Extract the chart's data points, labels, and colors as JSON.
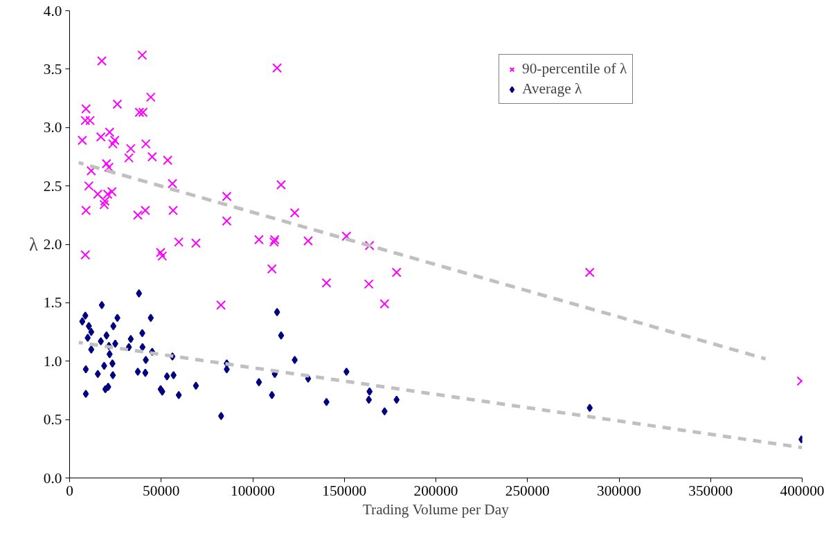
{
  "chart_data": {
    "type": "scatter",
    "xlabel": "Trading Volume per Day",
    "ylabel": "λ",
    "xlim": [
      0,
      400000
    ],
    "ylim": [
      0,
      4.0
    ],
    "xticks": [
      0,
      50000,
      100000,
      150000,
      200000,
      250000,
      300000,
      350000,
      400000
    ],
    "yticks": [
      {
        "value": 0,
        "label": "0.0"
      },
      {
        "value": 0.5,
        "label": "0.5"
      },
      {
        "value": 1,
        "label": "1.0"
      },
      {
        "value": 1.5,
        "label": "1.5"
      },
      {
        "value": 2,
        "label": "2.0"
      },
      {
        "value": 2.5,
        "label": "2.5"
      },
      {
        "value": 3,
        "label": "3.0"
      },
      {
        "value": 3.5,
        "label": "3.5"
      },
      {
        "value": 4,
        "label": "4.0"
      }
    ],
    "grid": false,
    "legend": "top right",
    "series": [
      {
        "name": "90-percentile of λ",
        "color": "#ff00ff",
        "marker": "cross",
        "x": [
          17610,
          39690,
          44320,
          26090,
          8980,
          38150,
          40080,
          8590,
          11180,
          21850,
          17070,
          24660,
          23620,
          6940,
          33410,
          41620,
          32370,
          45090,
          53560,
          20150,
          21460,
          11830,
          56150,
          10520,
          15410,
          20810,
          23120,
          19270,
          18880,
          8980,
          37260,
          41350,
          56530,
          85820,
          85820,
          59610,
          68980,
          8590,
          49710,
          50600,
          113290,
          115490,
          122930,
          103390,
          112020,
          111630,
          130250,
          151180,
          163780,
          110480,
          140270,
          163390,
          178540,
          171980,
          82660,
          284010,
          399610
        ],
        "values": [
          3.57,
          3.62,
          3.26,
          3.2,
          3.16,
          3.13,
          3.13,
          3.06,
          3.06,
          2.96,
          2.92,
          2.89,
          2.86,
          2.89,
          2.82,
          2.86,
          2.74,
          2.75,
          2.72,
          2.69,
          2.66,
          2.63,
          2.52,
          2.5,
          2.43,
          2.43,
          2.45,
          2.37,
          2.34,
          2.29,
          2.25,
          2.29,
          2.29,
          2.41,
          2.2,
          2.02,
          2.01,
          1.91,
          1.93,
          1.9,
          3.51,
          2.51,
          2.27,
          2.04,
          2.04,
          2.02,
          2.03,
          2.07,
          1.99,
          1.79,
          1.67,
          1.66,
          1.76,
          1.49,
          1.48,
          1.76,
          0.83
        ]
      },
      {
        "name": "Average λ",
        "color": "#000080",
        "marker": "diamond",
        "x": [
          37880,
          17610,
          8590,
          6940,
          10520,
          11830,
          9900,
          26090,
          23890,
          44320,
          39690,
          20150,
          17070,
          33410,
          32370,
          24930,
          21460,
          39810,
          11830,
          21850,
          45090,
          56150,
          41620,
          8860,
          18880,
          23390,
          15410,
          23620,
          37260,
          41350,
          53180,
          56760,
          85820,
          85820,
          68980,
          49710,
          50600,
          19530,
          21080,
          59610,
          8860,
          82740,
          113290,
          115490,
          122930,
          103390,
          112020,
          130250,
          151180,
          110480,
          140270,
          163780,
          163390,
          178540,
          171980,
          284010,
          399610
        ],
        "values": [
          1.58,
          1.48,
          1.39,
          1.34,
          1.3,
          1.25,
          1.2,
          1.37,
          1.3,
          1.37,
          1.24,
          1.22,
          1.17,
          1.19,
          1.12,
          1.15,
          1.13,
          1.12,
          1.1,
          1.06,
          1.08,
          1.04,
          1.01,
          0.93,
          0.96,
          0.98,
          0.89,
          0.88,
          0.91,
          0.9,
          0.87,
          0.88,
          0.98,
          0.93,
          0.79,
          0.76,
          0.74,
          0.76,
          0.78,
          0.71,
          0.72,
          0.53,
          1.42,
          1.22,
          1.01,
          0.82,
          0.89,
          0.85,
          0.91,
          0.71,
          0.65,
          0.74,
          0.67,
          0.67,
          0.57,
          0.6,
          0.33
        ]
      },
      {
        "type": "line",
        "color": "#c0c0c0",
        "line_style": "dashed",
        "x": [
          5000,
          380000
        ],
        "values": [
          2.7,
          1.02
        ]
      },
      {
        "type": "line",
        "color": "#c0c0c0",
        "line_style": "dashed",
        "x": [
          5000,
          400000
        ],
        "values": [
          1.16,
          0.26
        ]
      }
    ]
  }
}
